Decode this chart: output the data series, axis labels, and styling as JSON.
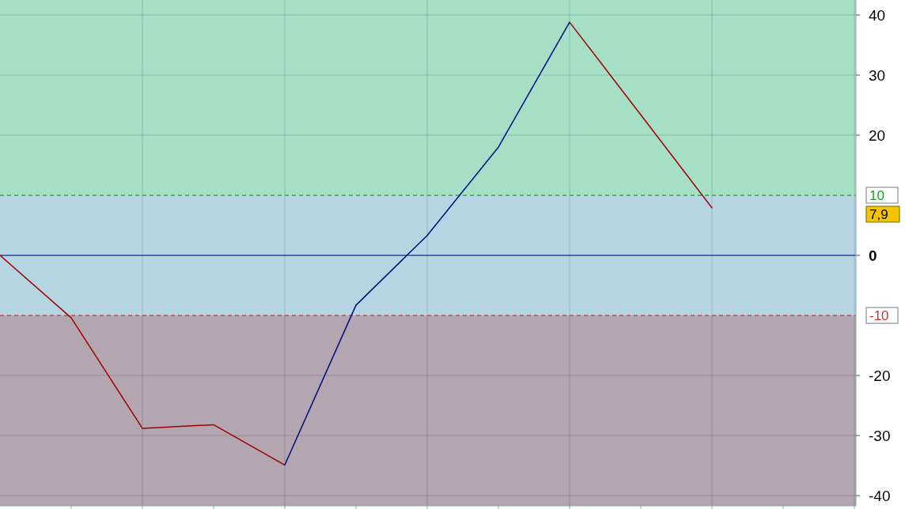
{
  "chart_data": {
    "type": "line",
    "categories": [
      null,
      null,
      null,
      null,
      null,
      null,
      null,
      null,
      null,
      null,
      null
    ],
    "series": [
      {
        "color": "#a00000",
        "colors": [
          null,
          null,
          null,
          null,
          null,
          "#000a7a",
          "#000a7a",
          "#000a7a",
          "#000a7a",
          null,
          null
        ],
        "values": [
          0,
          -10.4,
          -28.8,
          -28.2,
          -34.9,
          -8.3,
          3.3,
          18.0,
          38.8,
          23.4,
          7.9
        ]
      }
    ],
    "ylim": [
      -41.7,
      42.5
    ],
    "yticks": [
      -40,
      -30,
      -20,
      0,
      20,
      30,
      40
    ],
    "grid": true,
    "bands": [
      {
        "axis": "y",
        "from": 10,
        "to": 42.5,
        "color": "#a5dfc6"
      },
      {
        "axis": "y",
        "from": -10,
        "to": 10,
        "color": "#b6d5e2"
      },
      {
        "axis": "y",
        "from": -41.7,
        "to": -10,
        "color": "#b3a6b1"
      }
    ],
    "ref_lines": [
      {
        "axis": "y",
        "value": 10,
        "label": "10",
        "color": "#1f9e1f",
        "line_style": "dashed"
      },
      {
        "axis": "y",
        "value": -10,
        "label": "-10",
        "color": "#d03030",
        "line_style": "dashed"
      },
      {
        "axis": "y",
        "value": 0,
        "color": "#2030c0",
        "line_style": "solid"
      }
    ],
    "annotations": [
      "7,9"
    ]
  }
}
